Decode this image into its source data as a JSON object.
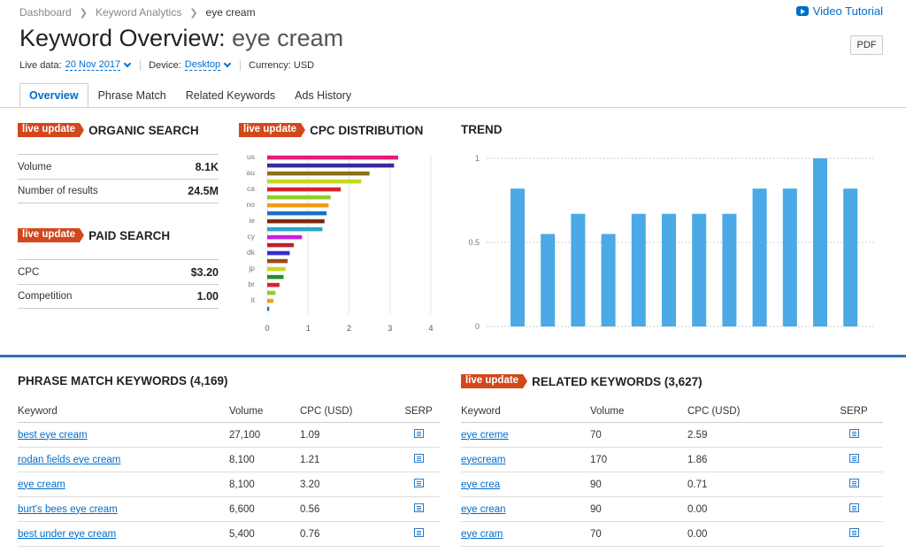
{
  "breadcrumb": [
    "Dashboard",
    "Keyword Analytics",
    "eye cream"
  ],
  "video_tutorial": "Video Tutorial",
  "title": {
    "prefix": "Keyword Overview:",
    "keyword": "eye cream"
  },
  "pdf_label": "PDF",
  "meta": {
    "live_data_label": "Live data:",
    "live_data_value": "20 Nov 2017",
    "device_label": "Device:",
    "device_value": "Desktop",
    "currency": "Currency: USD"
  },
  "tabs": [
    "Overview",
    "Phrase Match",
    "Related Keywords",
    "Ads History"
  ],
  "badge": "live update",
  "organic": {
    "title": "ORGANIC SEARCH",
    "rows": [
      {
        "label": "Volume",
        "value": "8.1K"
      },
      {
        "label": "Number of results",
        "value": "24.5M"
      }
    ]
  },
  "paid": {
    "title": "PAID SEARCH",
    "rows": [
      {
        "label": "CPC",
        "value": "$3.20"
      },
      {
        "label": "Competition",
        "value": "1.00"
      }
    ]
  },
  "cpc_chart_title": "CPC DISTRIBUTION",
  "trend_chart_title": "TREND",
  "chart_data": [
    {
      "type": "bar",
      "orientation": "horizontal",
      "title": "CPC DISTRIBUTION",
      "categories": [
        "us",
        "",
        "au",
        "",
        "ca",
        "",
        "no",
        "",
        "ie",
        "",
        "cy",
        "",
        "dk",
        "",
        "jp",
        "",
        "br",
        "",
        "it",
        ""
      ],
      "values": [
        3.2,
        3.1,
        2.5,
        2.3,
        1.8,
        1.55,
        1.5,
        1.45,
        1.4,
        1.35,
        0.85,
        0.65,
        0.55,
        0.5,
        0.45,
        0.4,
        0.3,
        0.2,
        0.15,
        0.05
      ],
      "colors": [
        "#e8197a",
        "#3a2a9c",
        "#8d6e1e",
        "#c9d81c",
        "#d8232a",
        "#8fce2c",
        "#f29a14",
        "#1d70c2",
        "#7a2a12",
        "#2aa6c9",
        "#c71fe0",
        "#c01f2f",
        "#3a2ad0",
        "#9e4a1a",
        "#c9d81c",
        "#2a8c2c",
        "#d8232a",
        "#8fce2c",
        "#f29a14",
        "#1d70c2"
      ],
      "xlim": [
        0,
        4
      ],
      "xticks": [
        "0",
        "1",
        "2",
        "3",
        "4"
      ]
    },
    {
      "type": "bar",
      "title": "TREND",
      "values": [
        0.82,
        0.55,
        0.67,
        0.55,
        0.67,
        0.67,
        0.67,
        0.67,
        0.82,
        0.82,
        1.0,
        0.82
      ],
      "ylim": [
        0,
        1
      ],
      "yticks": [
        "1",
        "0.5",
        "0"
      ],
      "color": "#4aa9e6"
    }
  ],
  "phrase_match": {
    "title": "PHRASE MATCH KEYWORDS (4,169)",
    "headers": [
      "Keyword",
      "Volume",
      "CPC (USD)",
      "SERP"
    ],
    "rows": [
      [
        "best eye cream",
        "27,100",
        "1.09"
      ],
      [
        "rodan fields eye cream",
        "8,100",
        "1.21"
      ],
      [
        "eye cream",
        "8,100",
        "3.20"
      ],
      [
        "burt's bees eye cream",
        "6,600",
        "0.56"
      ],
      [
        "best under eye cream",
        "5,400",
        "0.76"
      ]
    ]
  },
  "related": {
    "title": "RELATED KEYWORDS (3,627)",
    "headers": [
      "Keyword",
      "Volume",
      "CPC (USD)",
      "SERP"
    ],
    "rows": [
      [
        "eye creme",
        "70",
        "2.59"
      ],
      [
        "eyecream",
        "170",
        "1.86"
      ],
      [
        "eye crea",
        "90",
        "0.71"
      ],
      [
        "eye crean",
        "90",
        "0.00"
      ],
      [
        "eye cram",
        "70",
        "0.00"
      ]
    ]
  }
}
